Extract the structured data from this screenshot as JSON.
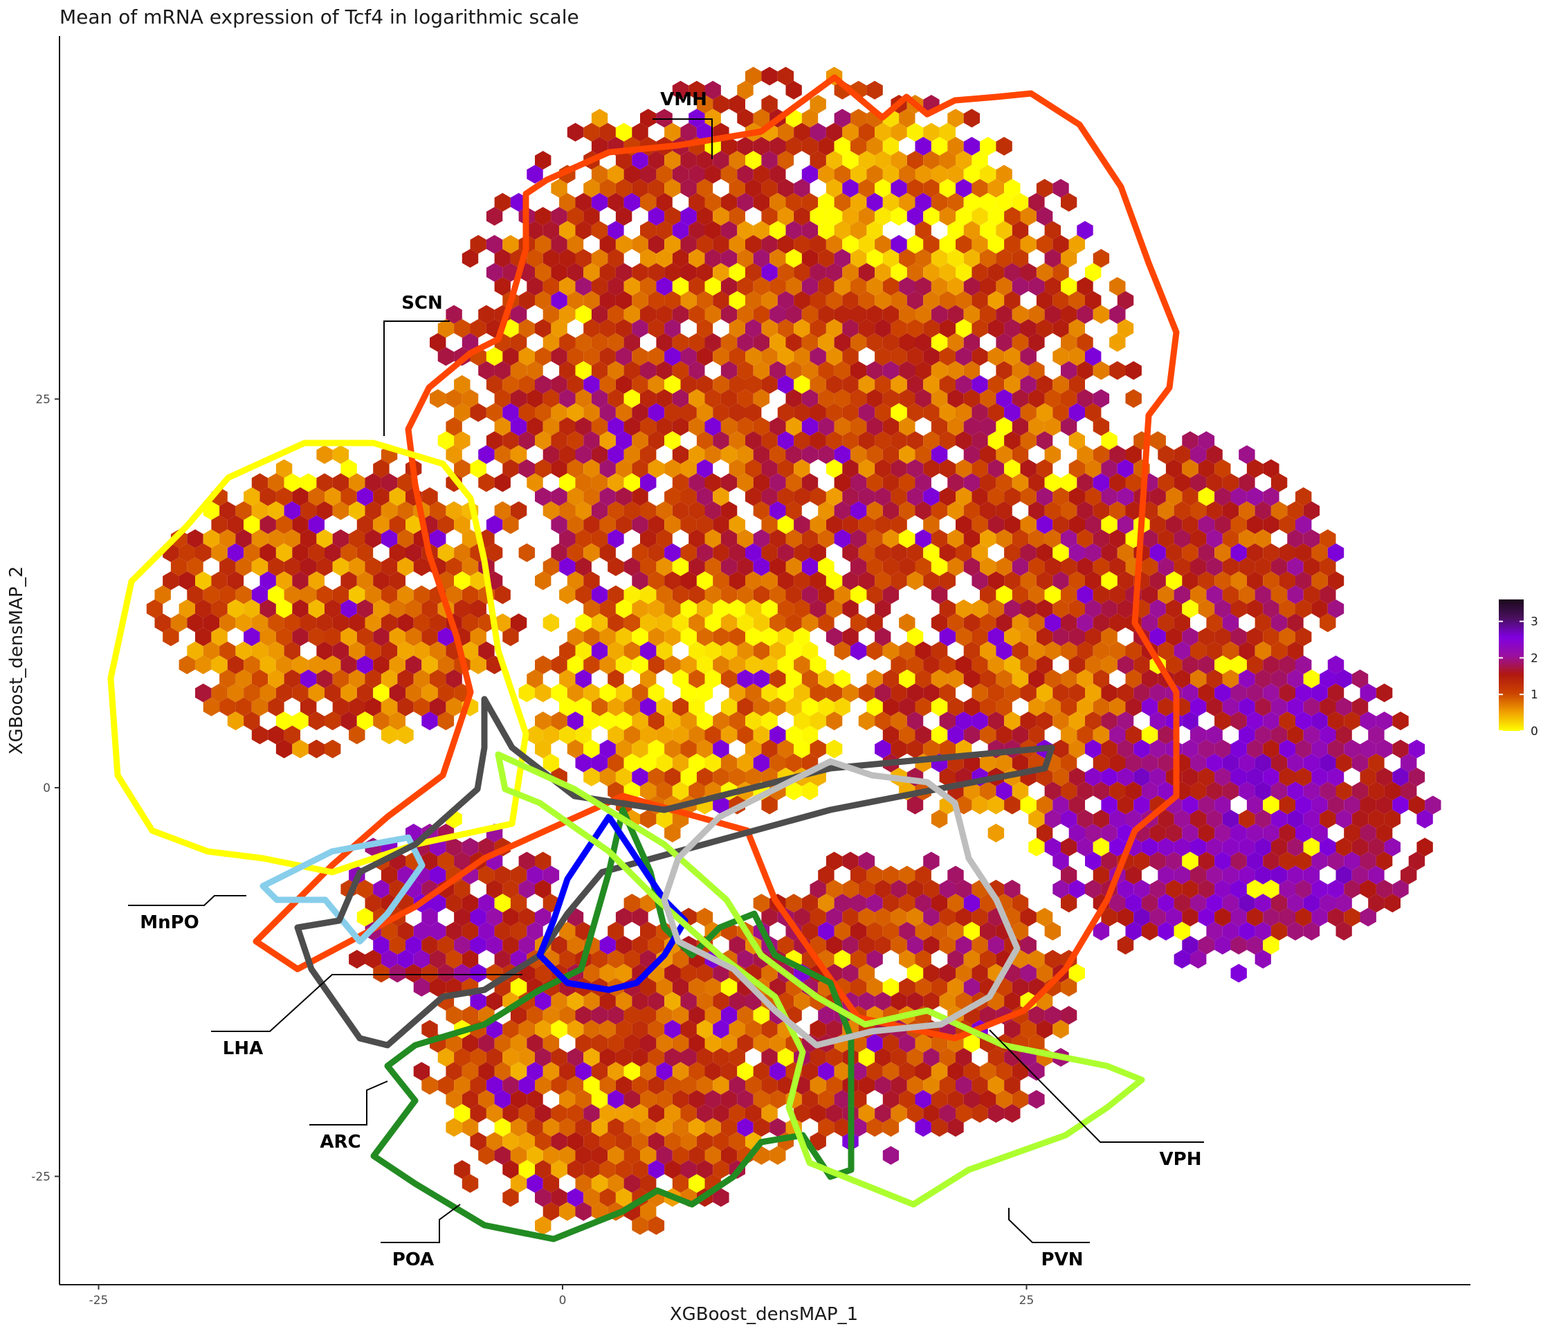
{
  "chart_data": {
    "type": "heatmap",
    "subtype": "hexbin",
    "title": "Mean of mRNA expression of Tcf4 in logarithmic scale",
    "xlabel": "XGBoost_densMAP_1",
    "ylabel": "XGBoost_densMAP_2",
    "xlim": [
      -27,
      49
    ],
    "ylim": [
      -32,
      48
    ],
    "x_ticks": [
      -25,
      0,
      25
    ],
    "y_ticks": [
      -25,
      0,
      25
    ],
    "grid": false,
    "legend_position": "right",
    "colorbar": {
      "min": 0,
      "max": 3.6,
      "ticks": [
        0,
        1,
        2,
        3
      ],
      "colors": [
        "#ffff00",
        "#f0a000",
        "#cc4400",
        "#b01810",
        "#9a10a0",
        "#8000e0",
        "#4a1060",
        "#1a0a1a"
      ]
    },
    "regions": [
      {
        "name": "VMH",
        "color": "#ff4500"
      },
      {
        "name": "SCN",
        "color": "#ffff00"
      },
      {
        "name": "MnPO",
        "color": "#87ceeb"
      },
      {
        "name": "LHA",
        "color": "#4d4d4d"
      },
      {
        "name": "ARC",
        "color": "#228b22"
      },
      {
        "name": "POA",
        "color": "#0000ff"
      },
      {
        "name": "PVN",
        "color": "#adff2f"
      },
      {
        "name": "VPH",
        "color": "#bebebe"
      }
    ],
    "hex_clusters": [
      {
        "cx": 12,
        "cy": 27,
        "r": 19,
        "mean": 1.2
      },
      {
        "cx": 18,
        "cy": 36,
        "r": 8,
        "mean": 0.4
      },
      {
        "cx": -12,
        "cy": 12,
        "r": 10,
        "mean": 1.0
      },
      {
        "cx": 32,
        "cy": 13,
        "r": 10,
        "mean": 1.4
      },
      {
        "cx": 36,
        "cy": -1,
        "r": 11,
        "mean": 2.0
      },
      {
        "cx": 7,
        "cy": 6,
        "r": 9,
        "mean": 0.5
      },
      {
        "cx": 3,
        "cy": -18,
        "r": 11,
        "mean": 1.1
      },
      {
        "cx": -6,
        "cy": -8,
        "r": 6,
        "mean": 1.7
      },
      {
        "cx": 18,
        "cy": -14,
        "r": 10,
        "mean": 1.3
      },
      {
        "cx": 24,
        "cy": 5,
        "r": 8,
        "mean": 1.1
      }
    ]
  }
}
